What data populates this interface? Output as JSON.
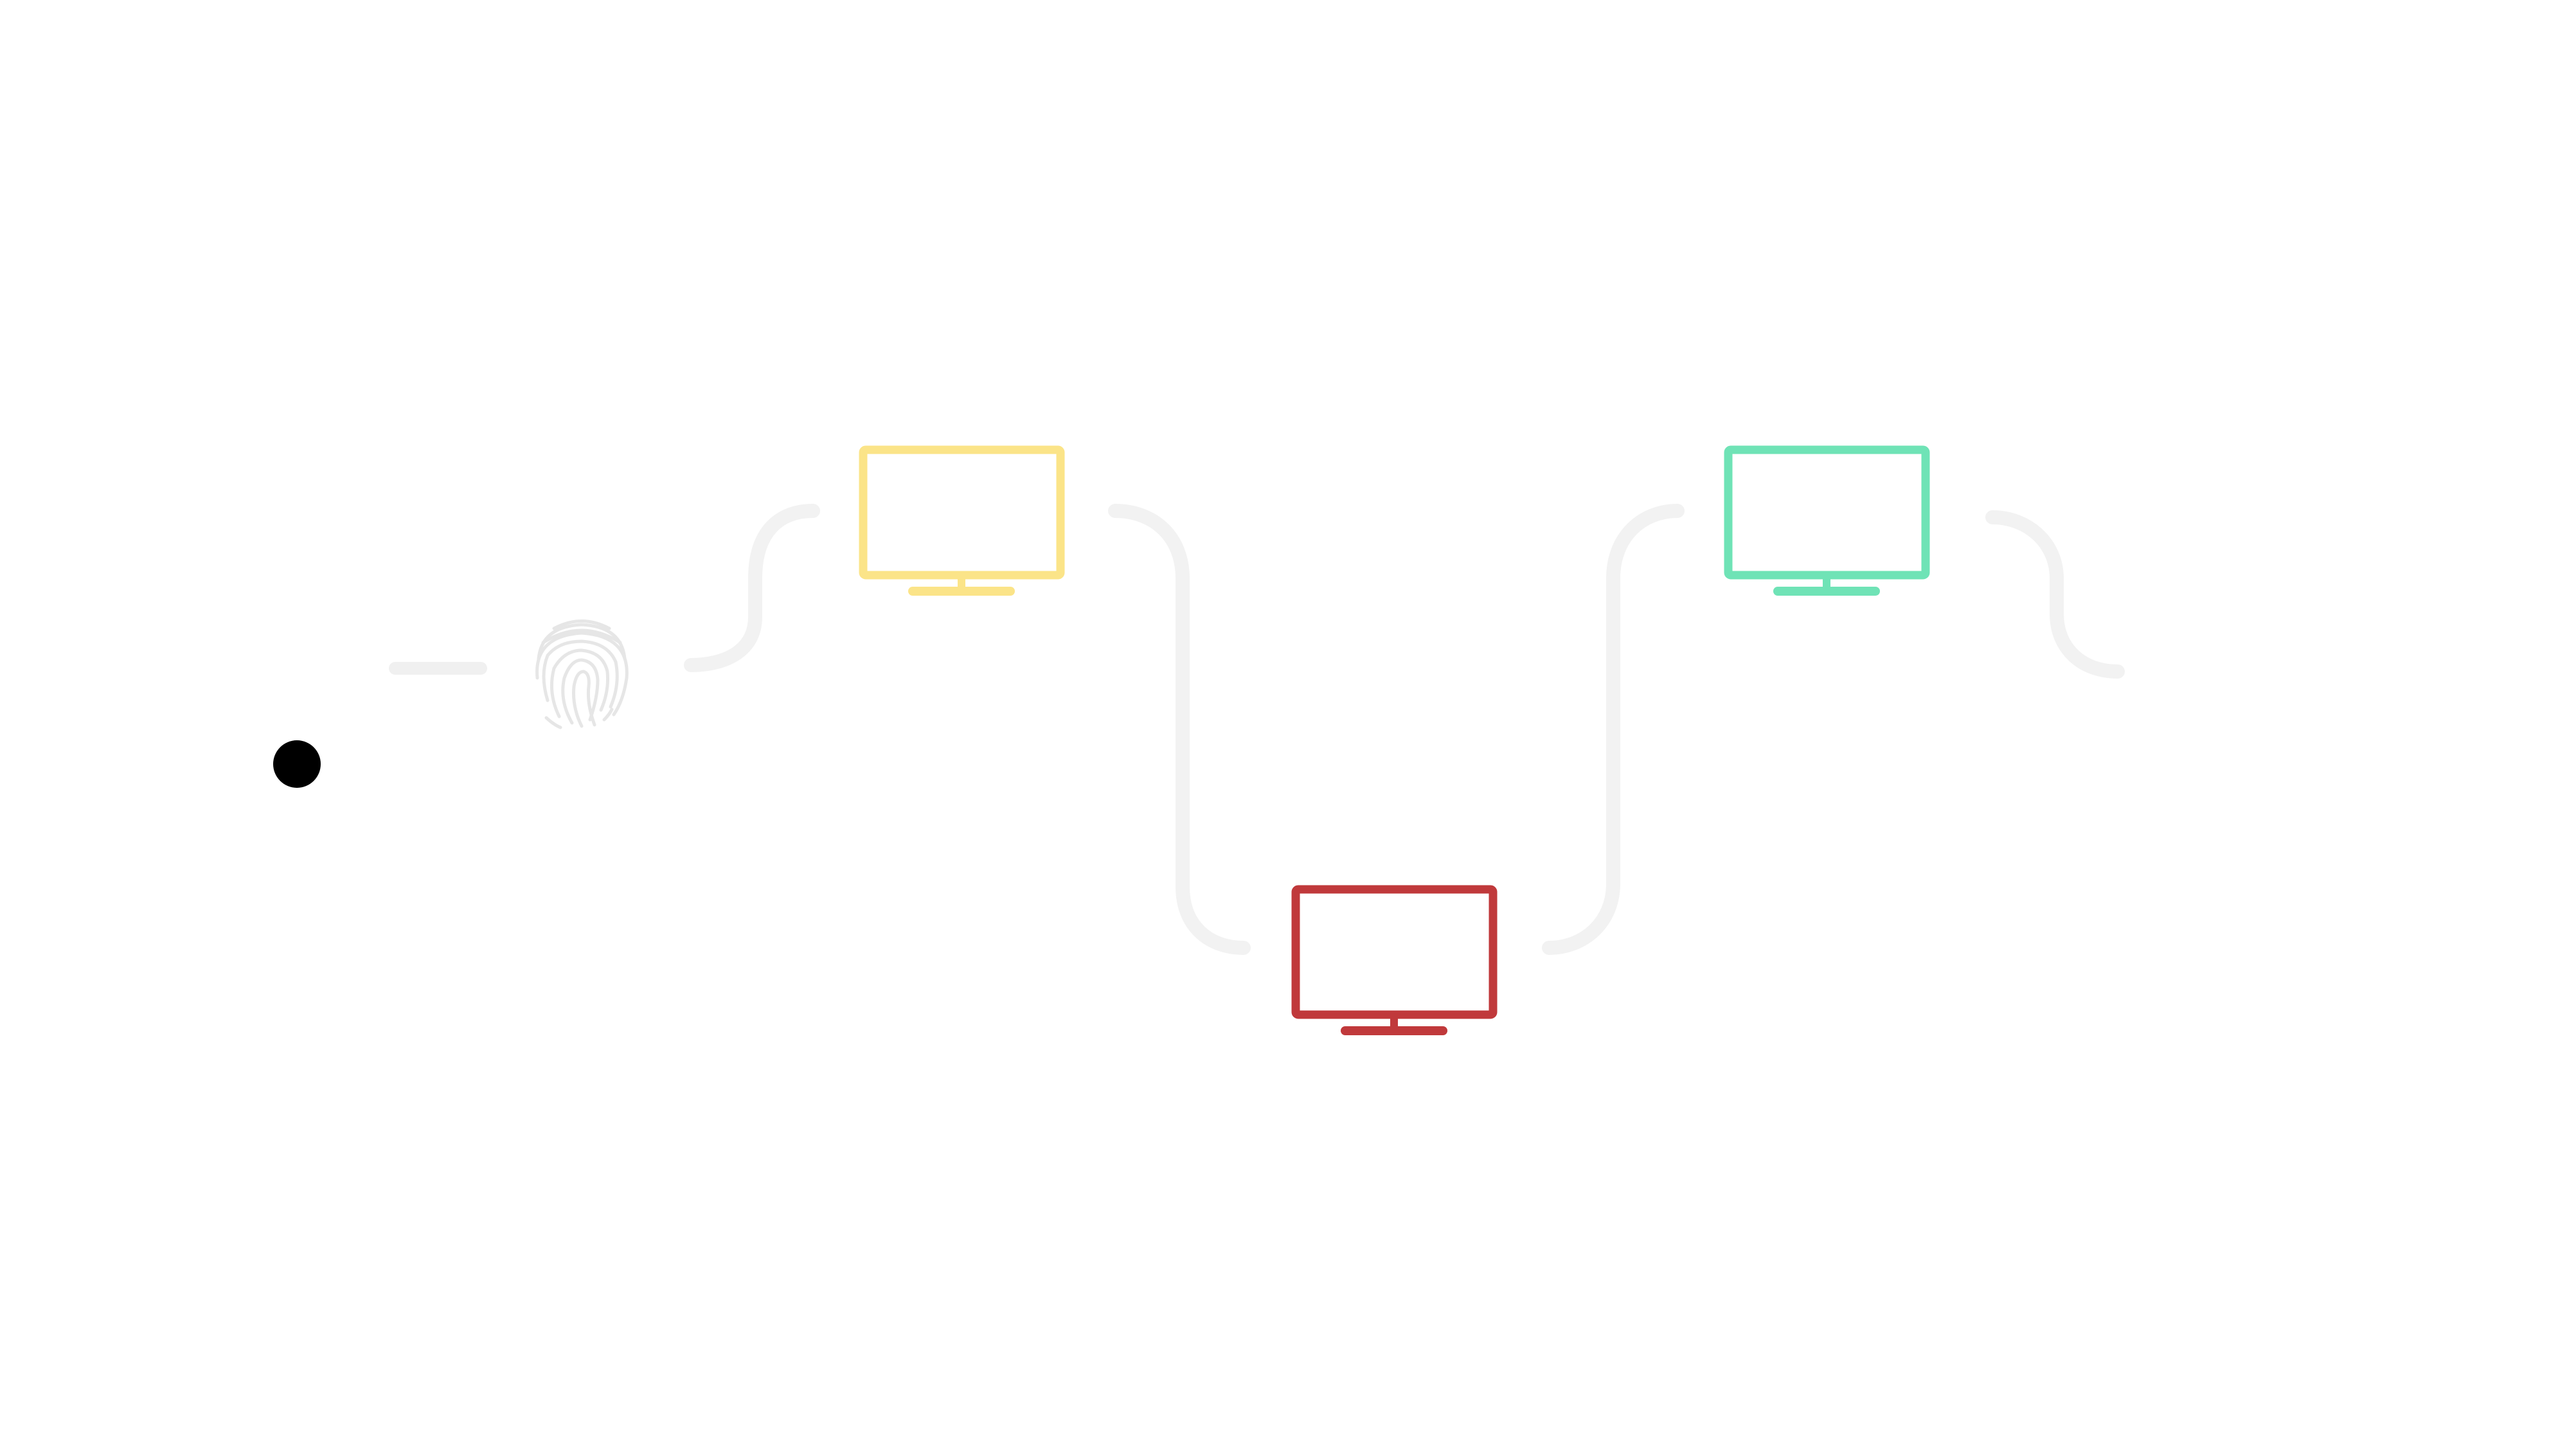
{
  "diagram": {
    "background": "#ffffff",
    "connector_color": "#f2f2f2",
    "cursor": {
      "icon": "cursor-dot-icon",
      "color": "#000000"
    },
    "dash": {
      "icon": "dash-line-icon",
      "color": "#f0f0f0"
    },
    "fingerprint": {
      "icon": "fingerprint-icon",
      "color": "#e6e6e6"
    },
    "monitors": [
      {
        "id": "monitor-1",
        "icon": "monitor-icon",
        "color": "#fbe488"
      },
      {
        "id": "monitor-2",
        "icon": "monitor-icon",
        "color": "#c0393b"
      },
      {
        "id": "monitor-3",
        "icon": "monitor-icon",
        "color": "#6fe3b6"
      }
    ]
  }
}
